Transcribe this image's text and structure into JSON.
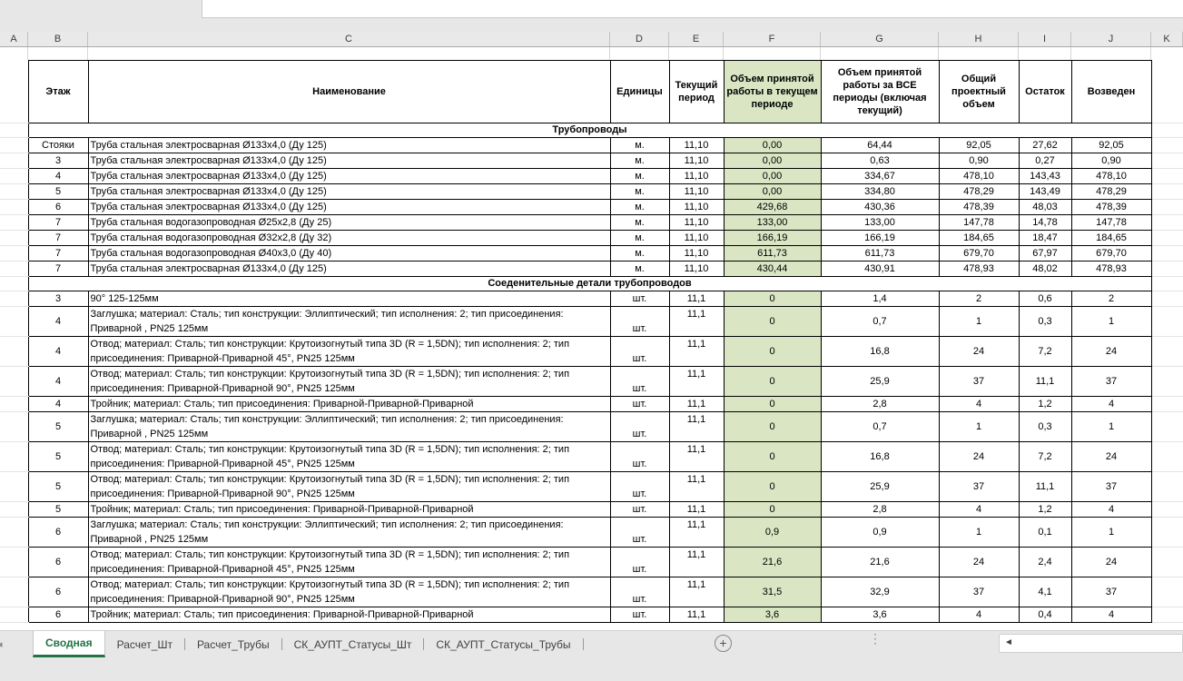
{
  "formula_bar": {
    "value": ""
  },
  "columns": {
    "letters": [
      "A",
      "B",
      "C",
      "D",
      "E",
      "F",
      "G",
      "H",
      "I",
      "J",
      "K"
    ]
  },
  "table": {
    "headers": {
      "floor": "Этаж",
      "name": "Наименование",
      "units": "Единицы",
      "current_period": "Текущий период",
      "accepted_current": "Объем принятой работы в текущем периоде",
      "accepted_all": "Объем принятой работы за ВСЕ периоды (включая текущий)",
      "total_project": "Общий проектный объем",
      "remainder": "Остаток",
      "erected": "Возведен"
    },
    "sections": [
      {
        "title": "Трубопроводы",
        "rows": [
          [
            "Стояки",
            "Труба стальная электросварная Ø133х4,0 (Ду 125)",
            "м.",
            "11,10",
            "0,00",
            "64,44",
            "92,05",
            "27,62",
            "92,05"
          ],
          [
            "3",
            "Труба стальная электросварная Ø133х4,0 (Ду 125)",
            "м.",
            "11,10",
            "0,00",
            "0,63",
            "0,90",
            "0,27",
            "0,90"
          ],
          [
            "4",
            "Труба стальная электросварная Ø133х4,0 (Ду 125)",
            "м.",
            "11,10",
            "0,00",
            "334,67",
            "478,10",
            "143,43",
            "478,10"
          ],
          [
            "5",
            "Труба стальная электросварная Ø133х4,0 (Ду 125)",
            "м.",
            "11,10",
            "0,00",
            "334,80",
            "478,29",
            "143,49",
            "478,29"
          ],
          [
            "6",
            "Труба стальная электросварная Ø133х4,0 (Ду 125)",
            "м.",
            "11,10",
            "429,68",
            "430,36",
            "478,39",
            "48,03",
            "478,39"
          ],
          [
            "7",
            "Труба стальная водогазопроводная Ø25х2,8 (Ду 25)",
            "м.",
            "11,10",
            "133,00",
            "133,00",
            "147,78",
            "14,78",
            "147,78"
          ],
          [
            "7",
            "Труба стальная водогазопроводная Ø32х2,8 (Ду 32)",
            "м.",
            "11,10",
            "166,19",
            "166,19",
            "184,65",
            "18,47",
            "184,65"
          ],
          [
            "7",
            "Труба стальная водогазопроводная Ø40х3,0 (Ду 40)",
            "м.",
            "11,10",
            "611,73",
            "611,73",
            "679,70",
            "67,97",
            "679,70"
          ],
          [
            "7",
            "Труба стальная электросварная Ø133х4,0 (Ду 125)",
            "м.",
            "11,10",
            "430,44",
            "430,91",
            "478,93",
            "48,02",
            "478,93"
          ]
        ]
      },
      {
        "title": "Соеденительные детали трубопроводов",
        "rows": [
          [
            "3",
            "90° 125-125мм",
            "шт.",
            "11,1",
            "0",
            "1,4",
            "2",
            "0,6",
            "2"
          ],
          [
            "4",
            "Заглушка; материал: Сталь; тип конструкции: Эллиптический; тип исполнения: 2; тип присоединения: Приварной , PN25 125мм",
            "шт.",
            "11,1",
            "0",
            "0,7",
            "1",
            "0,3",
            "1"
          ],
          [
            "4",
            "Отвод; материал: Сталь; тип конструкции: Крутоизогнутый типа 3D (R = 1,5DN); тип исполнения: 2; тип присоединения: Приварной-Приварной  45°, PN25 125мм",
            "шт.",
            "11,1",
            "0",
            "16,8",
            "24",
            "7,2",
            "24"
          ],
          [
            "4",
            "Отвод; материал: Сталь; тип конструкции: Крутоизогнутый типа 3D (R = 1,5DN); тип исполнения: 2; тип присоединения: Приварной-Приварной  90°, PN25 125мм",
            "шт.",
            "11,1",
            "0",
            "25,9",
            "37",
            "11,1",
            "37"
          ],
          [
            "4",
            "Тройник; материал: Сталь; тип присоединения: Приварной-Приварной-Приварной",
            "шт.",
            "11,1",
            "0",
            "2,8",
            "4",
            "1,2",
            "4"
          ],
          [
            "5",
            "Заглушка; материал: Сталь; тип конструкции: Эллиптический; тип исполнения: 2; тип присоединения: Приварной , PN25 125мм",
            "шт.",
            "11,1",
            "0",
            "0,7",
            "1",
            "0,3",
            "1"
          ],
          [
            "5",
            "Отвод; материал: Сталь; тип конструкции: Крутоизогнутый типа 3D (R = 1,5DN); тип исполнения: 2; тип присоединения: Приварной-Приварной  45°, PN25 125мм",
            "шт.",
            "11,1",
            "0",
            "16,8",
            "24",
            "7,2",
            "24"
          ],
          [
            "5",
            "Отвод; материал: Сталь; тип конструкции: Крутоизогнутый типа 3D (R = 1,5DN); тип исполнения: 2; тип присоединения: Приварной-Приварной  90°, PN25 125мм",
            "шт.",
            "11,1",
            "0",
            "25,9",
            "37",
            "11,1",
            "37"
          ],
          [
            "5",
            "Тройник; материал: Сталь; тип присоединения: Приварной-Приварной-Приварной",
            "шт.",
            "11,1",
            "0",
            "2,8",
            "4",
            "1,2",
            "4"
          ],
          [
            "6",
            "Заглушка; материал: Сталь; тип конструкции: Эллиптический; тип исполнения: 2; тип присоединения: Приварной , PN25 125мм",
            "шт.",
            "11,1",
            "0,9",
            "0,9",
            "1",
            "0,1",
            "1"
          ],
          [
            "6",
            "Отвод; материал: Сталь; тип конструкции: Крутоизогнутый типа 3D (R = 1,5DN); тип исполнения: 2; тип присоединения: Приварной-Приварной  45°, PN25 125мм",
            "шт.",
            "11,1",
            "21,6",
            "21,6",
            "24",
            "2,4",
            "24"
          ],
          [
            "6",
            "Отвод; материал: Сталь; тип конструкции: Крутоизогнутый типа 3D (R = 1,5DN); тип исполнения: 2; тип присоединения: Приварной-Приварной  90°, PN25 125мм",
            "шт.",
            "11,1",
            "31,5",
            "32,9",
            "37",
            "4,1",
            "37"
          ],
          [
            "6",
            "Тройник; материал: Сталь; тип присоединения: Приварной-Приварной-Приварной",
            "шт.",
            "11,1",
            "3,6",
            "3,6",
            "4",
            "0,4",
            "4"
          ]
        ]
      }
    ]
  },
  "sheet_tabs": {
    "active": "Сводная",
    "tabs": [
      "Сводная",
      "Расчет_Шт",
      "Расчет_Трубы",
      "СК_АУПТ_Статусы_Шт",
      "СК_АУПТ_Статусы_Трубы"
    ]
  },
  "icons": {
    "add_sheet_plus": "+",
    "scroll_left_arrow": "◄",
    "overflow_dots": "⋮",
    "tab_nav_fragment": "◂"
  },
  "colors": {
    "accent_green": "#217346",
    "accepted_fill": "#d9e5c3",
    "chrome_gray": "#e7e7e7"
  }
}
